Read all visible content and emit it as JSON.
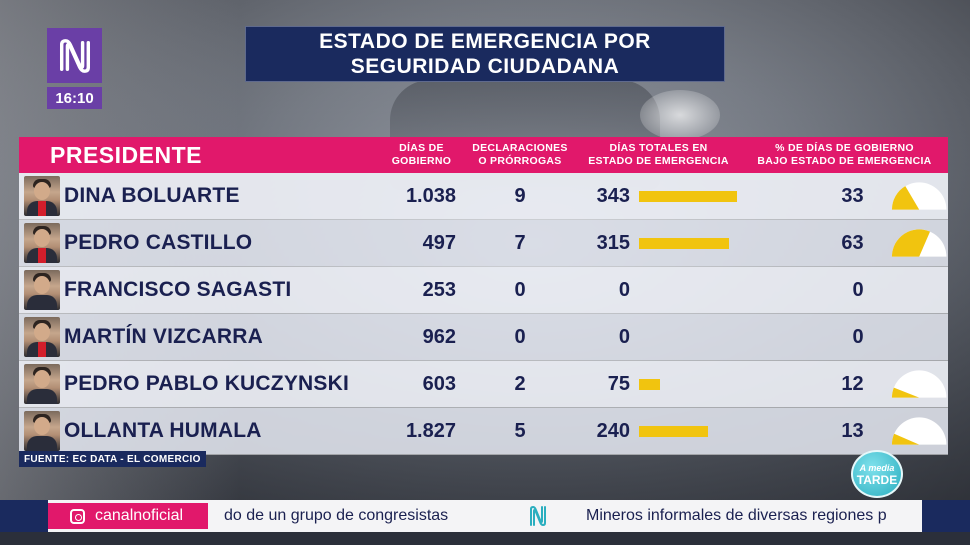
{
  "clock": "16:10",
  "title": {
    "line1": "ESTADO DE EMERGENCIA POR",
    "line2": "SEGURIDAD CIUDADANA"
  },
  "table": {
    "headers": {
      "president": "PRESIDENTE",
      "dias_line1": "DÍAS DE",
      "dias_line2": "GOBIERNO",
      "decl_line1": "DECLARACIONES",
      "decl_line2": "O PRÓRROGAS",
      "total_line1": "DÍAS TOTALES EN",
      "total_line2": "ESTADO DE EMERGENCIA",
      "pct_line1": "% DE DÍAS DE GOBIERNO",
      "pct_line2": "BAJO ESTADO DE EMERGENCIA"
    },
    "rows": [
      {
        "name": "DINA BOLUARTE",
        "dias": "1.038",
        "decl": "9",
        "total": "343",
        "total_value": 343,
        "pct": "33",
        "pct_value": 33
      },
      {
        "name": "PEDRO CASTILLO",
        "dias": "497",
        "decl": "7",
        "total": "315",
        "total_value": 315,
        "pct": "63",
        "pct_value": 63
      },
      {
        "name": "FRANCISCO SAGASTI",
        "dias": "253",
        "decl": "0",
        "total": "0",
        "total_value": 0,
        "pct": "0",
        "pct_value": 0
      },
      {
        "name": "MARTÍN VIZCARRA",
        "dias": "962",
        "decl": "0",
        "total": "0",
        "total_value": 0,
        "pct": "0",
        "pct_value": 0
      },
      {
        "name": "PEDRO PABLO KUCZYNSKI",
        "dias": "603",
        "decl": "2",
        "total": "75",
        "total_value": 75,
        "pct": "12",
        "pct_value": 12
      },
      {
        "name": "OLLANTA HUMALA",
        "dias": "1.827",
        "decl": "5",
        "total": "240",
        "total_value": 240,
        "pct": "13",
        "pct_value": 13
      }
    ]
  },
  "source": "FUENTE: EC DATA - EL COMERCIO",
  "show_badge": {
    "line1": "A media",
    "line2": "TARDE"
  },
  "ticker": {
    "social": "canalnoficial",
    "news_1": "do de un grupo de congresistas",
    "news_2": "Mineros informales de diversas regiones p"
  },
  "colors": {
    "pink": "#e1186b",
    "navy": "#1a2a5e",
    "bar_yellow": "#f1c40f",
    "logo_purple": "#6a3fa6"
  }
}
